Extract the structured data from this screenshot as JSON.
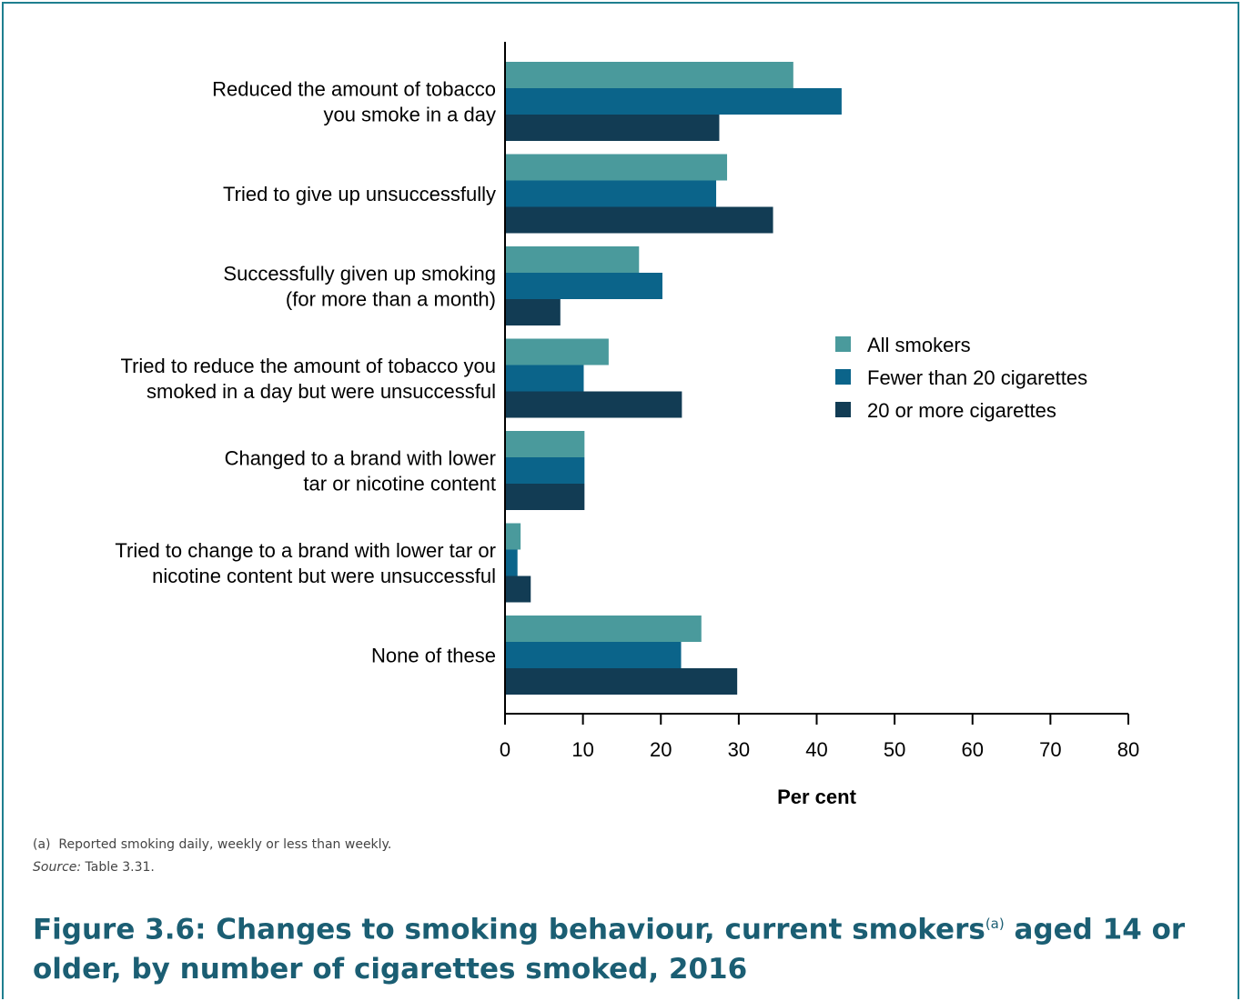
{
  "chart_data": {
    "type": "bar",
    "orientation": "horizontal",
    "categories": [
      [
        "Reduced the amount of tobacco",
        "you smoke in a day"
      ],
      [
        "Tried to give up unsuccessfully"
      ],
      [
        "Successfully given up smoking",
        "(for more than a month)"
      ],
      [
        "Tried to reduce the amount of tobacco you",
        "smoked in a day but were unsuccessful"
      ],
      [
        "Changed to a brand with lower",
        "tar or nicotine content"
      ],
      [
        "Tried to change to a brand with lower tar or",
        "nicotine content but were unsuccessful"
      ],
      [
        "None of these"
      ]
    ],
    "series": [
      {
        "name": "All smokers",
        "color": "#4a9a9c",
        "values": [
          37.0,
          28.5,
          17.2,
          13.3,
          10.2,
          2.0,
          25.2
        ]
      },
      {
        "name": "Fewer than 20 cigarettes",
        "color": "#0b648a",
        "values": [
          43.2,
          27.1,
          20.2,
          10.1,
          10.2,
          1.6,
          22.6
        ]
      },
      {
        "name": "20 or more cigarettes",
        "color": "#123c54",
        "values": [
          27.5,
          34.4,
          7.1,
          22.7,
          10.2,
          3.3,
          29.8
        ]
      }
    ],
    "xlim": [
      0,
      80
    ],
    "xticks": [
      0,
      10,
      20,
      30,
      40,
      50,
      60,
      70,
      80
    ],
    "xlabel": "Per cent",
    "legend_position": "right",
    "grid": false
  },
  "footnote": "(a)  Reported smoking daily, weekly or less than weekly.",
  "source_label": "Source:",
  "source_text": " Table 3.31.",
  "figure_title": {
    "before": "Figure 3.6: Changes to smoking behaviour, current smokers",
    "sup": "(a)",
    "after": " aged 14 or older, by number of cigarettes smoked, 2016"
  }
}
